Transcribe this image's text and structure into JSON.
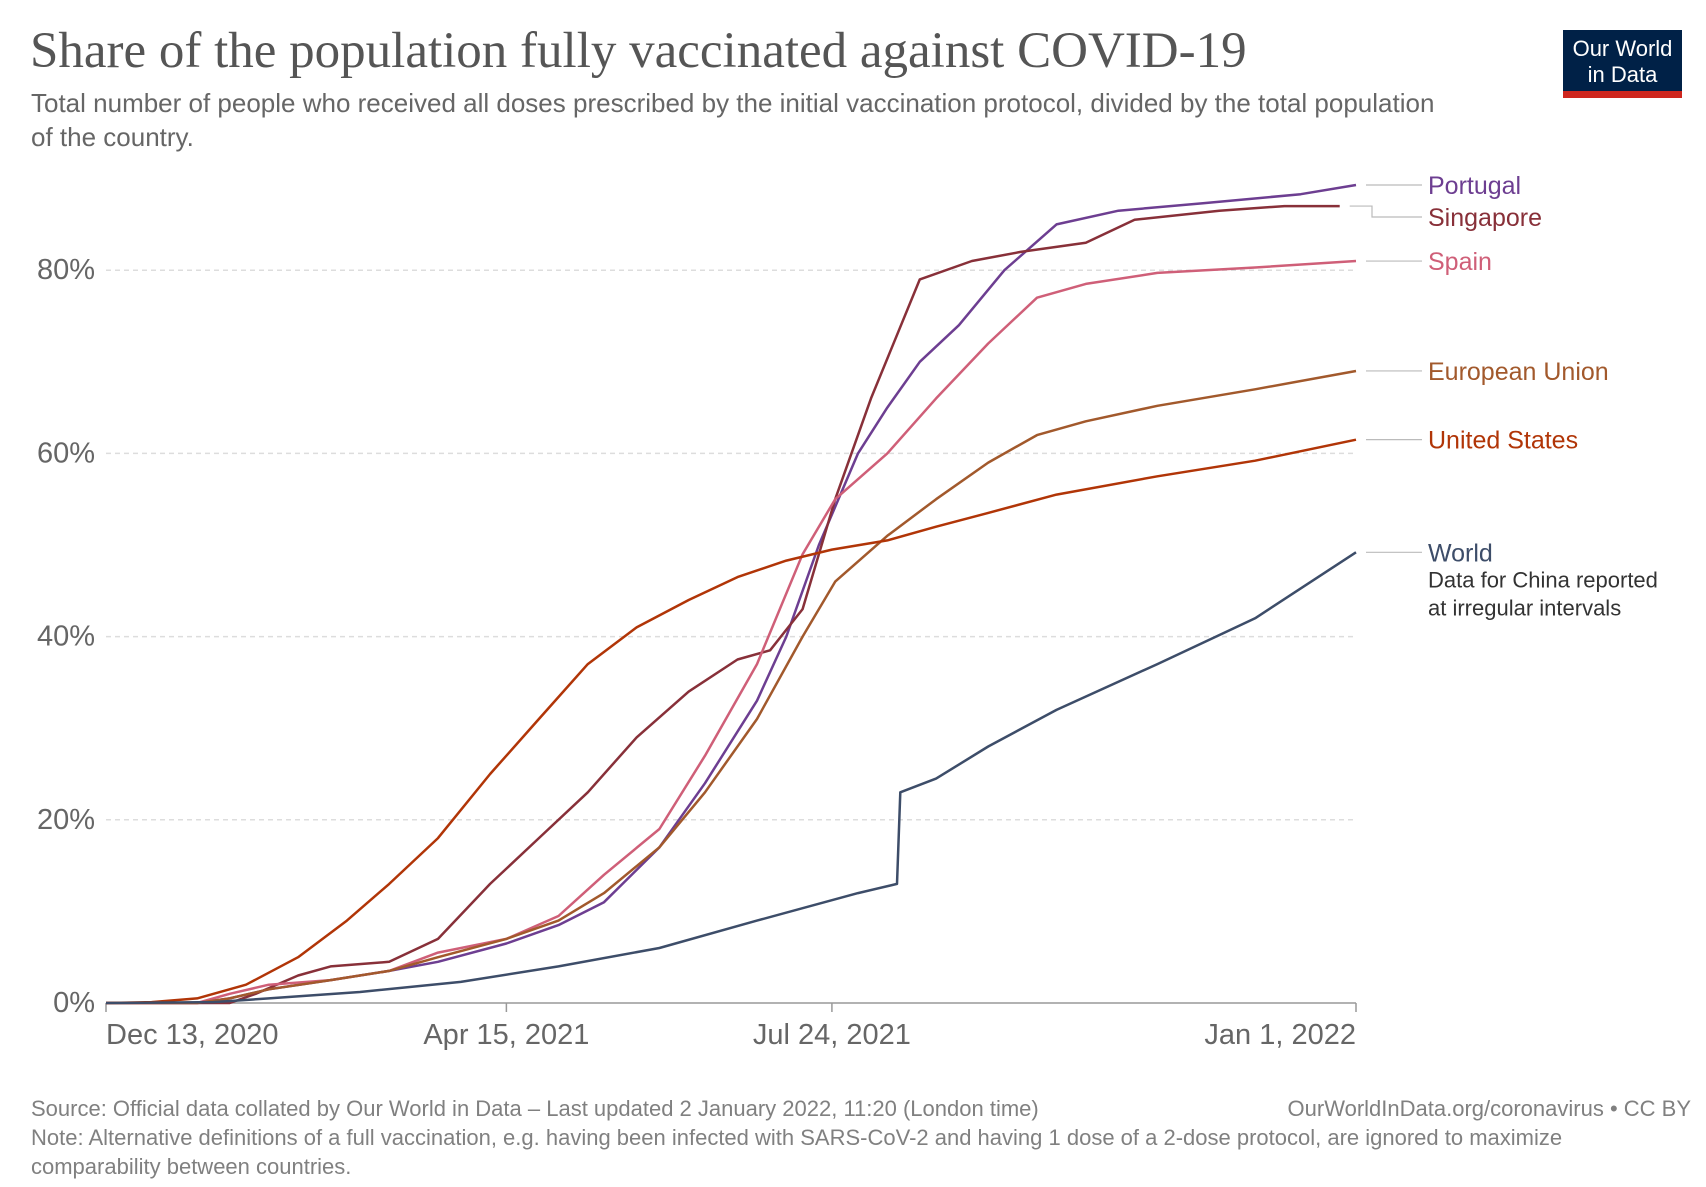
{
  "header": {
    "title": "Share of the population fully vaccinated against COVID-19",
    "subtitle": "Total number of people who received all doses prescribed by the initial vaccination protocol, divided by the total population of the country."
  },
  "logo": {
    "line1": "Our World",
    "line2": "in Data",
    "bg_color": "#002147",
    "accent_color": "#ce261e"
  },
  "footer": {
    "source": "Source: Official data collated by Our World in Data – Last updated 2 January 2022, 11:20 (London time)",
    "link": "OurWorldInData.org/coronavirus • CC BY",
    "note": "Note: Alternative definitions of a full vaccination, e.g. having been infected with SARS-CoV-2 and having 1 dose of a 2-dose protocol, are ignored to maximize comparability between countries."
  },
  "chart_data": {
    "type": "line",
    "x_type": "date",
    "xlim": [
      "2020-12-13",
      "2022-01-01"
    ],
    "ylim": [
      0,
      90
    ],
    "y_ticks": [
      0,
      20,
      40,
      60,
      80
    ],
    "y_tick_labels": [
      "0%",
      "20%",
      "40%",
      "60%",
      "80%"
    ],
    "x_ticks": [
      "2020-12-13",
      "2021-04-15",
      "2021-07-24",
      "2022-01-01"
    ],
    "x_tick_labels": [
      "Dec 13, 2020",
      "Apr 15, 2021",
      "Jul 24, 2021",
      "Jan 1, 2022"
    ],
    "grid": "horizontal dashed",
    "legend": "right, labels at line ends",
    "series": [
      {
        "name": "Portugal",
        "color": "#6d3e91",
        "points": [
          [
            "2020-12-13",
            0
          ],
          [
            "2021-01-10",
            0
          ],
          [
            "2021-01-20",
            0.5
          ],
          [
            "2021-02-01",
            1.5
          ],
          [
            "2021-02-20",
            2.5
          ],
          [
            "2021-03-10",
            3.5
          ],
          [
            "2021-03-25",
            4.5
          ],
          [
            "2021-04-15",
            6.5
          ],
          [
            "2021-05-01",
            8.5
          ],
          [
            "2021-05-15",
            11
          ],
          [
            "2021-06-01",
            17
          ],
          [
            "2021-06-15",
            24
          ],
          [
            "2021-07-01",
            33
          ],
          [
            "2021-07-10",
            40
          ],
          [
            "2021-07-20",
            50
          ],
          [
            "2021-08-01",
            60
          ],
          [
            "2021-08-10",
            65
          ],
          [
            "2021-08-20",
            70
          ],
          [
            "2021-09-01",
            74
          ],
          [
            "2021-09-15",
            80
          ],
          [
            "2021-10-01",
            85
          ],
          [
            "2021-10-20",
            86.5
          ],
          [
            "2021-11-15",
            87.3
          ],
          [
            "2021-12-15",
            88.3
          ],
          [
            "2022-01-01",
            89.3
          ]
        ]
      },
      {
        "name": "Singapore",
        "color": "#883039",
        "points": [
          [
            "2020-12-13",
            0
          ],
          [
            "2021-01-20",
            0
          ],
          [
            "2021-01-28",
            1
          ],
          [
            "2021-02-10",
            3
          ],
          [
            "2021-02-20",
            4
          ],
          [
            "2021-03-10",
            4.5
          ],
          [
            "2021-03-25",
            7
          ],
          [
            "2021-04-10",
            13
          ],
          [
            "2021-04-25",
            18
          ],
          [
            "2021-05-10",
            23
          ],
          [
            "2021-05-25",
            29
          ],
          [
            "2021-06-10",
            34
          ],
          [
            "2021-06-25",
            37.5
          ],
          [
            "2021-07-05",
            38.5
          ],
          [
            "2021-07-15",
            43
          ],
          [
            "2021-07-25",
            55
          ],
          [
            "2021-08-05",
            66
          ],
          [
            "2021-08-20",
            79
          ],
          [
            "2021-09-05",
            81
          ],
          [
            "2021-09-20",
            82
          ],
          [
            "2021-10-10",
            83
          ],
          [
            "2021-10-25",
            85.5
          ],
          [
            "2021-11-20",
            86.5
          ],
          [
            "2021-12-10",
            87
          ],
          [
            "2021-12-27",
            87
          ]
        ]
      },
      {
        "name": "Spain",
        "color": "#cf5f78",
        "points": [
          [
            "2020-12-13",
            0
          ],
          [
            "2021-01-10",
            0
          ],
          [
            "2021-01-20",
            1
          ],
          [
            "2021-02-01",
            2
          ],
          [
            "2021-02-20",
            2.5
          ],
          [
            "2021-03-10",
            3.5
          ],
          [
            "2021-03-25",
            5.5
          ],
          [
            "2021-04-15",
            7
          ],
          [
            "2021-05-01",
            9.5
          ],
          [
            "2021-05-15",
            14
          ],
          [
            "2021-06-01",
            19
          ],
          [
            "2021-06-15",
            27
          ],
          [
            "2021-07-01",
            37
          ],
          [
            "2021-07-15",
            49
          ],
          [
            "2021-07-25",
            55
          ],
          [
            "2021-08-10",
            60
          ],
          [
            "2021-08-25",
            66
          ],
          [
            "2021-09-10",
            72
          ],
          [
            "2021-09-25",
            77
          ],
          [
            "2021-10-10",
            78.5
          ],
          [
            "2021-11-01",
            79.7
          ],
          [
            "2021-12-01",
            80.3
          ],
          [
            "2022-01-01",
            81
          ]
        ]
      },
      {
        "name": "European Union",
        "color": "#a2592c",
        "points": [
          [
            "2020-12-13",
            0
          ],
          [
            "2021-01-10",
            0
          ],
          [
            "2021-01-20",
            0.5
          ],
          [
            "2021-02-01",
            1.5
          ],
          [
            "2021-02-20",
            2.5
          ],
          [
            "2021-03-10",
            3.5
          ],
          [
            "2021-03-25",
            5
          ],
          [
            "2021-04-15",
            7
          ],
          [
            "2021-05-01",
            9
          ],
          [
            "2021-05-15",
            12
          ],
          [
            "2021-06-01",
            17
          ],
          [
            "2021-06-15",
            23
          ],
          [
            "2021-07-01",
            31
          ],
          [
            "2021-07-15",
            40
          ],
          [
            "2021-07-25",
            46
          ],
          [
            "2021-08-10",
            51
          ],
          [
            "2021-08-25",
            55
          ],
          [
            "2021-09-10",
            59
          ],
          [
            "2021-09-25",
            62
          ],
          [
            "2021-10-10",
            63.5
          ],
          [
            "2021-11-01",
            65.2
          ],
          [
            "2021-12-01",
            67
          ],
          [
            "2022-01-01",
            69
          ]
        ]
      },
      {
        "name": "United States",
        "color": "#b13507",
        "points": [
          [
            "2020-12-13",
            0
          ],
          [
            "2020-12-27",
            0.1
          ],
          [
            "2021-01-10",
            0.5
          ],
          [
            "2021-01-25",
            2
          ],
          [
            "2021-02-10",
            5
          ],
          [
            "2021-02-25",
            9
          ],
          [
            "2021-03-10",
            13
          ],
          [
            "2021-03-25",
            18
          ],
          [
            "2021-04-10",
            25
          ],
          [
            "2021-04-25",
            31
          ],
          [
            "2021-05-10",
            37
          ],
          [
            "2021-05-25",
            41
          ],
          [
            "2021-06-10",
            44
          ],
          [
            "2021-06-25",
            46.5
          ],
          [
            "2021-07-10",
            48.3
          ],
          [
            "2021-07-24",
            49.5
          ],
          [
            "2021-08-10",
            50.5
          ],
          [
            "2021-08-25",
            52
          ],
          [
            "2021-09-10",
            53.5
          ],
          [
            "2021-10-01",
            55.5
          ],
          [
            "2021-11-01",
            57.5
          ],
          [
            "2021-12-01",
            59.2
          ],
          [
            "2022-01-01",
            61.5
          ]
        ]
      },
      {
        "name": "World",
        "color": "#3d4d69",
        "points": [
          [
            "2020-12-13",
            0
          ],
          [
            "2021-01-15",
            0.1
          ],
          [
            "2021-02-01",
            0.5
          ],
          [
            "2021-03-01",
            1.2
          ],
          [
            "2021-04-01",
            2.3
          ],
          [
            "2021-05-01",
            4
          ],
          [
            "2021-06-01",
            6
          ],
          [
            "2021-07-01",
            9
          ],
          [
            "2021-08-01",
            12
          ],
          [
            "2021-08-13",
            13
          ],
          [
            "2021-08-14",
            23
          ],
          [
            "2021-08-25",
            24.5
          ],
          [
            "2021-09-10",
            28
          ],
          [
            "2021-10-01",
            32
          ],
          [
            "2021-11-01",
            37
          ],
          [
            "2021-12-01",
            42
          ],
          [
            "2022-01-01",
            49.2
          ]
        ]
      }
    ],
    "annotations": [
      {
        "series": "World",
        "text_line1": "Data for China reported",
        "text_line2": "at irregular intervals"
      }
    ]
  }
}
